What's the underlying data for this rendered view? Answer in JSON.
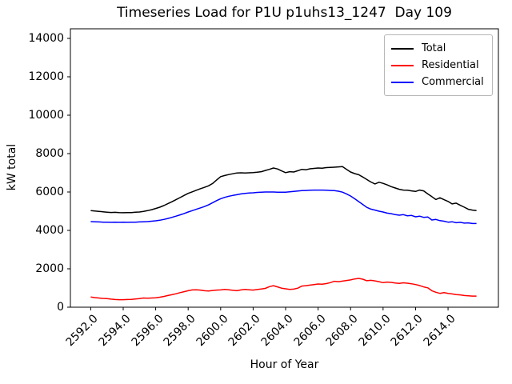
{
  "chart_data": {
    "type": "line",
    "title": "Timeseries Load for P1U p1uhs13_1247  Day 109",
    "xlabel": "Hour of Year",
    "ylabel": "kW total",
    "xlim": [
      2590.75,
      2617.1
    ],
    "ylim": [
      0,
      14500
    ],
    "grid": false,
    "legend_position": "upper right",
    "xticks": {
      "values": [
        2592,
        2594,
        2596,
        2598,
        2600,
        2602,
        2604,
        2606,
        2608,
        2610,
        2612,
        2614
      ],
      "labels": [
        "2592.0",
        "2594.0",
        "2596.0",
        "2598.0",
        "2600.0",
        "2602.0",
        "2604.0",
        "2606.0",
        "2608.0",
        "2610.0",
        "2612.0",
        "2614.0"
      ]
    },
    "yticks": {
      "values": [
        0,
        2000,
        4000,
        6000,
        8000,
        10000,
        12000,
        14000
      ],
      "labels": [
        "0",
        "2000",
        "4000",
        "6000",
        "8000",
        "10000",
        "12000",
        "14000"
      ]
    },
    "x": [
      2592.0,
      2592.25,
      2592.5,
      2592.75,
      2593.0,
      2593.25,
      2593.5,
      2593.75,
      2594.0,
      2594.25,
      2594.5,
      2594.75,
      2595.0,
      2595.25,
      2595.5,
      2595.75,
      2596.0,
      2596.25,
      2596.5,
      2596.75,
      2597.0,
      2597.25,
      2597.5,
      2597.75,
      2598.0,
      2598.25,
      2598.5,
      2598.75,
      2599.0,
      2599.25,
      2599.5,
      2599.75,
      2600.0,
      2600.25,
      2600.5,
      2600.75,
      2601.0,
      2601.25,
      2601.5,
      2601.75,
      2602.0,
      2602.25,
      2602.5,
      2602.75,
      2603.0,
      2603.25,
      2603.5,
      2603.75,
      2604.0,
      2604.25,
      2604.5,
      2604.75,
      2605.0,
      2605.25,
      2605.5,
      2605.75,
      2606.0,
      2606.25,
      2606.5,
      2606.75,
      2607.0,
      2607.25,
      2607.5,
      2607.75,
      2608.0,
      2608.25,
      2608.5,
      2608.75,
      2609.0,
      2609.25,
      2609.5,
      2609.75,
      2610.0,
      2610.25,
      2610.5,
      2610.75,
      2611.0,
      2611.25,
      2611.5,
      2611.75,
      2612.0,
      2612.25,
      2612.5,
      2612.75,
      2613.0,
      2613.25,
      2613.5,
      2613.75,
      2614.0,
      2614.25,
      2614.5,
      2614.75,
      2615.0,
      2615.25,
      2615.5,
      2615.75
    ],
    "series": [
      {
        "name": "Total",
        "color": "#000000",
        "values": [
          5030,
          5010,
          4990,
          4970,
          4950,
          4935,
          4940,
          4925,
          4920,
          4930,
          4925,
          4945,
          4960,
          4990,
          5030,
          5080,
          5140,
          5210,
          5290,
          5390,
          5490,
          5600,
          5710,
          5820,
          5930,
          6010,
          6090,
          6170,
          6240,
          6320,
          6440,
          6620,
          6800,
          6860,
          6910,
          6950,
          6990,
          7000,
          6990,
          7000,
          7010,
          7030,
          7060,
          7120,
          7180,
          7250,
          7200,
          7100,
          7010,
          7060,
          7040,
          7110,
          7180,
          7160,
          7210,
          7230,
          7250,
          7240,
          7270,
          7280,
          7290,
          7310,
          7320,
          7180,
          7040,
          6960,
          6900,
          6780,
          6650,
          6520,
          6420,
          6510,
          6450,
          6370,
          6280,
          6210,
          6140,
          6100,
          6090,
          6060,
          6030,
          6100,
          6060,
          5900,
          5760,
          5610,
          5700,
          5600,
          5510,
          5380,
          5420,
          5310,
          5210,
          5100,
          5060,
          5030
        ]
      },
      {
        "name": "Residential",
        "color": "#ff0000",
        "values": [
          530,
          500,
          480,
          460,
          450,
          420,
          400,
          390,
          390,
          400,
          410,
          430,
          450,
          480,
          470,
          480,
          490,
          520,
          560,
          610,
          650,
          700,
          760,
          810,
          860,
          900,
          910,
          890,
          860,
          840,
          870,
          890,
          900,
          930,
          910,
          880,
          860,
          900,
          930,
          910,
          890,
          920,
          950,
          980,
          1070,
          1120,
          1060,
          990,
          960,
          930,
          940,
          990,
          1100,
          1120,
          1150,
          1180,
          1210,
          1200,
          1230,
          1280,
          1350,
          1330,
          1360,
          1390,
          1420,
          1470,
          1500,
          1460,
          1380,
          1400,
          1370,
          1330,
          1280,
          1310,
          1290,
          1260,
          1240,
          1270,
          1250,
          1220,
          1180,
          1130,
          1060,
          1010,
          860,
          780,
          720,
          760,
          720,
          690,
          660,
          640,
          610,
          590,
          580,
          580
        ]
      },
      {
        "name": "Commercial",
        "color": "#0000ff",
        "values": [
          4460,
          4450,
          4440,
          4430,
          4430,
          4420,
          4430,
          4420,
          4430,
          4420,
          4430,
          4430,
          4440,
          4450,
          4460,
          4480,
          4500,
          4530,
          4570,
          4620,
          4680,
          4740,
          4810,
          4880,
          4960,
          5030,
          5100,
          5170,
          5240,
          5330,
          5440,
          5550,
          5650,
          5720,
          5780,
          5820,
          5860,
          5900,
          5930,
          5950,
          5960,
          5980,
          5990,
          6000,
          6000,
          6000,
          5990,
          5990,
          5990,
          6010,
          6030,
          6050,
          6070,
          6080,
          6090,
          6100,
          6100,
          6100,
          6090,
          6080,
          6070,
          6040,
          5990,
          5900,
          5790,
          5650,
          5500,
          5350,
          5200,
          5110,
          5060,
          5000,
          4960,
          4900,
          4870,
          4820,
          4790,
          4820,
          4760,
          4780,
          4710,
          4740,
          4680,
          4700,
          4540,
          4570,
          4510,
          4480,
          4430,
          4450,
          4400,
          4420,
          4380,
          4390,
          4360,
          4360
        ]
      }
    ]
  }
}
